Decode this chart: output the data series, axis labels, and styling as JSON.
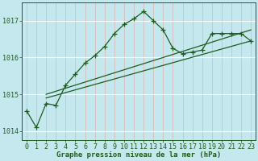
{
  "title": "Graphe pression niveau de la mer (hPa)",
  "bg_color": "#c5e8ee",
  "line_color": "#1e5c1e",
  "grid_color_v": "#dbb4b4",
  "grid_color_h": "#ffffff",
  "xlim": [
    -0.5,
    23.5
  ],
  "ylim": [
    1013.75,
    1017.5
  ],
  "yticks": [
    1014,
    1015,
    1016,
    1017
  ],
  "xticks": [
    0,
    1,
    2,
    3,
    4,
    5,
    6,
    7,
    8,
    9,
    10,
    11,
    12,
    13,
    14,
    15,
    16,
    17,
    18,
    19,
    20,
    21,
    22,
    23
  ],
  "series1_x": [
    0,
    1,
    2,
    3,
    4,
    5,
    6,
    7,
    8,
    9,
    10,
    11,
    12,
    13,
    14,
    15,
    16,
    17,
    18,
    19,
    20,
    21,
    22,
    23
  ],
  "series1_y": [
    1014.55,
    1014.1,
    1014.75,
    1014.7,
    1015.25,
    1015.55,
    1015.85,
    1016.05,
    1016.3,
    1016.65,
    1016.9,
    1017.05,
    1017.25,
    1017.0,
    1016.75,
    1016.25,
    1016.1,
    1016.15,
    1016.2,
    1016.65,
    1016.65,
    1016.65,
    1016.65,
    1016.45
  ],
  "series2_x": [
    2,
    23
  ],
  "series2_y": [
    1014.9,
    1016.45
  ],
  "series3_x": [
    2,
    23
  ],
  "series3_y": [
    1015.0,
    1016.75
  ],
  "marker": "+",
  "marker_size": 4,
  "lw": 0.9,
  "font_size": 6,
  "title_font_size": 6.5
}
